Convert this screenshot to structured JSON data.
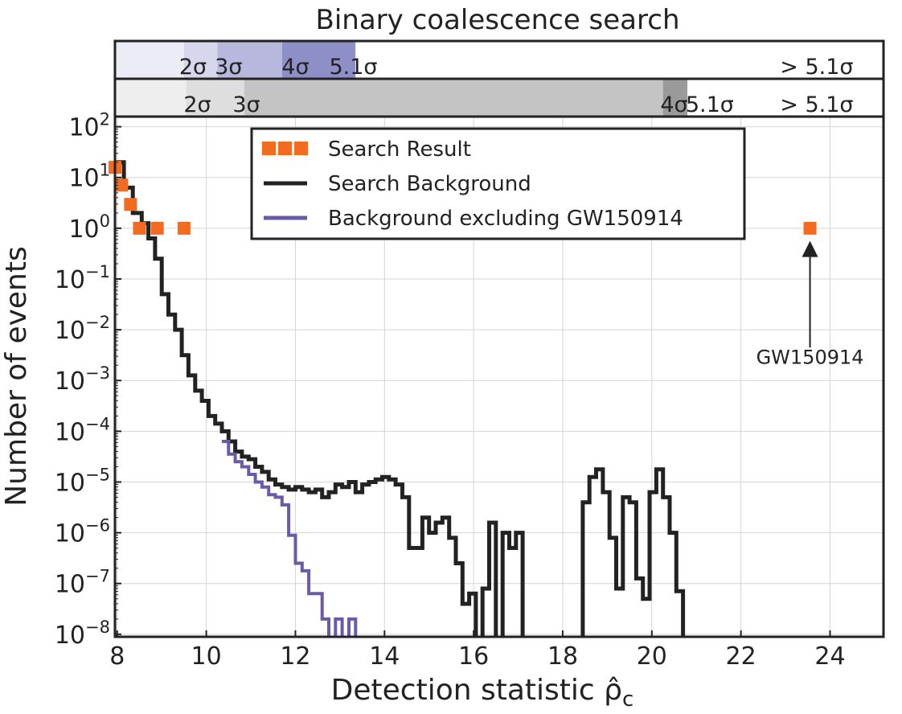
{
  "chart_data": {
    "type": "step-histogram-log",
    "title": "Binary coalescence search",
    "xlabel": "Detection statistic ρ̂",
    "xlabel_sub": "c",
    "ylabel": "Number of events",
    "xlim": [
      7.95,
      25.2
    ],
    "ylim_log10": [
      -8.05,
      2.2
    ],
    "yscale": "log",
    "grid": true,
    "x_ticks": [
      8,
      10,
      12,
      14,
      16,
      18,
      20,
      22,
      24
    ],
    "y_tick_exponents": [
      2,
      1,
      0,
      -1,
      -2,
      -3,
      -4,
      -5,
      -6,
      -7,
      -8
    ],
    "y_tick_base": "10",
    "legend": {
      "placement": "upper-center",
      "entries": [
        {
          "label": "Search Result",
          "color": "#f26b21",
          "kind": "markers"
        },
        {
          "label": "Search Background",
          "color": "#222222",
          "kind": "line"
        },
        {
          "label": "Background excluding GW150914",
          "color": "#6a5aa8",
          "kind": "line"
        }
      ]
    },
    "series": [
      {
        "name": "Search Result",
        "kind": "scatter",
        "color": "#f26b21",
        "points": [
          [
            7.95,
            1.2
          ],
          [
            8.1,
            0.85
          ],
          [
            8.3,
            0.47
          ],
          [
            8.5,
            0.0
          ],
          [
            8.9,
            0.0
          ],
          [
            9.5,
            0.0
          ],
          [
            23.55,
            0.0
          ]
        ]
      },
      {
        "name": "Search Background",
        "kind": "step",
        "color": "#222222",
        "bin_edges": [
          7.95,
          8.15,
          8.35,
          8.55,
          8.7,
          8.85,
          9.0,
          9.15,
          9.3,
          9.45,
          9.6,
          9.75,
          9.9,
          10.05,
          10.2,
          10.35,
          10.5,
          10.65,
          10.8,
          10.95,
          11.1,
          11.25,
          11.4,
          11.55,
          11.7,
          11.85,
          12.0,
          12.15,
          12.3,
          12.45,
          12.6,
          12.75,
          12.9,
          13.05,
          13.2,
          13.35,
          13.5,
          13.65,
          13.8,
          13.95,
          14.1,
          14.25,
          14.4,
          14.55,
          14.7,
          14.85,
          15.0,
          15.15,
          15.3,
          15.45,
          15.6,
          15.75,
          15.9,
          16.05,
          16.2,
          16.35,
          16.5,
          16.65,
          16.8,
          16.95,
          17.1,
          17.25,
          17.4,
          17.55,
          17.7,
          17.85,
          18.0,
          18.15,
          18.3,
          18.45,
          18.6,
          18.75,
          18.9,
          19.05,
          19.2,
          19.35,
          19.5,
          19.65,
          19.8,
          19.95,
          20.1,
          20.25,
          20.4,
          20.55,
          20.7,
          20.85
        ],
        "log10_values": [
          1.3,
          0.8,
          0.3,
          0.1,
          -0.2,
          -0.6,
          -1.3,
          -1.7,
          -2.0,
          -2.5,
          -2.9,
          -3.2,
          -3.4,
          -3.7,
          -3.85,
          -4.0,
          -4.2,
          -4.4,
          -4.5,
          -4.55,
          -4.7,
          -4.8,
          -4.95,
          -5.05,
          -5.1,
          -5.15,
          -5.1,
          -5.15,
          -5.2,
          -5.15,
          -5.3,
          -5.2,
          -5.05,
          -5.1,
          -5.0,
          -5.2,
          -5.05,
          -5.0,
          -4.95,
          -4.9,
          -4.95,
          -5.05,
          -5.3,
          -6.3,
          -6.3,
          -5.7,
          -6.0,
          -5.8,
          -5.7,
          -6.1,
          -6.6,
          -7.4,
          -7.2,
          -8.3,
          -7.1,
          -5.8,
          -8.3,
          -6.0,
          -6.3,
          -6.0,
          -8.3,
          -8.3,
          -8.3,
          -8.3,
          -8.3,
          -8.3,
          -8.3,
          -8.3,
          -8.3,
          -5.4,
          -4.9,
          -4.75,
          -5.2,
          -6.1,
          -7.1,
          -5.3,
          -5.4,
          -6.9,
          -7.3,
          -5.2,
          -4.75,
          -5.3,
          -6.0,
          -7.15,
          -8.3
        ]
      },
      {
        "name": "Background excluding GW150914",
        "kind": "step",
        "color": "#6a5aa8",
        "bin_edges": [
          10.35,
          10.5,
          10.65,
          10.8,
          10.95,
          11.1,
          11.25,
          11.4,
          11.55,
          11.7,
          11.85,
          12.0,
          12.15,
          12.3,
          12.45,
          12.6,
          12.75,
          12.9,
          13.05,
          13.2,
          13.35,
          13.5
        ],
        "log10_values": [
          -4.2,
          -4.45,
          -4.6,
          -4.7,
          -4.85,
          -5.0,
          -5.1,
          -5.25,
          -5.3,
          -5.45,
          -6.05,
          -6.6,
          -6.75,
          -7.2,
          -7.2,
          -7.7,
          -8.3,
          -7.7,
          -8.3,
          -7.7,
          -8.3
        ]
      }
    ],
    "annotations": [
      {
        "text": "GW150914",
        "arrow_x": 23.55,
        "arrow_from_log10": -2.35,
        "arrow_to_log10": -0.25,
        "text_x": 23.55,
        "text_log10": -2.45
      }
    ],
    "significance_bands": {
      "top": {
        "ranges": [
          {
            "from": 7.95,
            "to": 9.5,
            "color": "#ececf6"
          },
          {
            "from": 9.5,
            "to": 10.25,
            "color": "#d6d6ec"
          },
          {
            "from": 10.25,
            "to": 11.7,
            "color": "#b8b8de"
          },
          {
            "from": 11.7,
            "to": 13.35,
            "color": "#8f8fc8"
          },
          {
            "from": 13.35,
            "to": 25.2,
            "color": "#ffffff"
          }
        ],
        "labels": [
          {
            "text": "2σ",
            "x": 9.7
          },
          {
            "text": "3σ",
            "x": 10.5
          },
          {
            "text": "4σ",
            "x": 12.0
          },
          {
            "text": "5.1σ",
            "x": 13.3
          },
          {
            "text": "> 5.1σ",
            "x": 23.7
          }
        ]
      },
      "bottom": {
        "ranges": [
          {
            "from": 7.95,
            "to": 9.55,
            "color": "#eeeeee"
          },
          {
            "from": 9.55,
            "to": 10.85,
            "color": "#dedede"
          },
          {
            "from": 10.85,
            "to": 20.25,
            "color": "#c4c4c4"
          },
          {
            "from": 20.25,
            "to": 20.8,
            "color": "#9a9a9a"
          },
          {
            "from": 20.8,
            "to": 25.2,
            "color": "#ffffff"
          }
        ],
        "labels": [
          {
            "text": "2σ",
            "x": 9.8
          },
          {
            "text": "3σ",
            "x": 10.9
          },
          {
            "text": "4σ",
            "x": 20.5
          },
          {
            "text": "5.1σ",
            "x": 21.3
          },
          {
            "text": "> 5.1σ",
            "x": 23.7
          }
        ]
      }
    }
  }
}
